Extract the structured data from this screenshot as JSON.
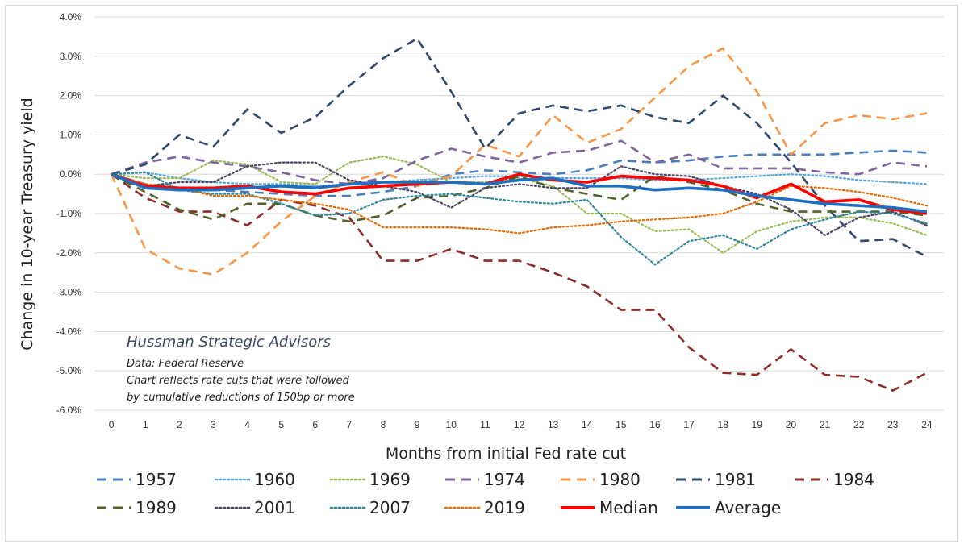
{
  "chart_data": {
    "type": "line",
    "xlabel": "Months from initial Fed rate cut",
    "ylabel": "Change in 10-year Treasury yield",
    "ylim": [
      -6,
      4
    ],
    "yticks": [
      "-6.0%",
      "-5.0%",
      "-4.0%",
      "-3.0%",
      "-2.0%",
      "-1.0%",
      "0.0%",
      "1.0%",
      "2.0%",
      "3.0%",
      "4.0%"
    ],
    "x": [
      0,
      1,
      2,
      3,
      4,
      5,
      6,
      7,
      8,
      9,
      10,
      11,
      12,
      13,
      14,
      15,
      16,
      17,
      18,
      19,
      20,
      21,
      22,
      23,
      24
    ],
    "xticks": [
      "0",
      "1",
      "2",
      "3",
      "4",
      "5",
      "6",
      "7",
      "8",
      "9",
      "10",
      "11",
      "12",
      "13",
      "14",
      "15",
      "16",
      "17",
      "18",
      "19",
      "20",
      "21",
      "22",
      "23",
      "24"
    ],
    "grid": true,
    "legend_position": "bottom",
    "annotation": {
      "title": "Hussman Strategic Advisors",
      "lines": [
        "Data: Federal Reserve",
        "Chart reflects rate cuts that were followed",
        "by cumulative reductions of 150bp or more"
      ]
    },
    "series": [
      {
        "name": "1957",
        "color": "#4a7ebb",
        "style": "dash",
        "values": [
          0,
          -0.25,
          -0.35,
          -0.4,
          -0.45,
          -0.5,
          -0.55,
          -0.55,
          -0.45,
          -0.3,
          0,
          0.1,
          0.05,
          0,
          0.1,
          0.35,
          0.3,
          0.35,
          0.45,
          0.5,
          0.5,
          0.5,
          0.55,
          0.6,
          0.55
        ]
      },
      {
        "name": "1960",
        "color": "#5aa7d6",
        "style": "dot",
        "values": [
          0,
          0.05,
          -0.1,
          -0.2,
          -0.25,
          -0.25,
          -0.3,
          -0.25,
          -0.2,
          -0.15,
          -0.1,
          -0.05,
          -0.05,
          -0.1,
          -0.1,
          -0.1,
          -0.15,
          -0.15,
          -0.1,
          -0.05,
          0,
          -0.05,
          -0.15,
          -0.2,
          -0.25
        ]
      },
      {
        "name": "1969",
        "color": "#9bbb59",
        "style": "dot",
        "values": [
          0,
          -0.1,
          -0.1,
          0.35,
          0.25,
          -0.2,
          -0.25,
          0.3,
          0.45,
          0.25,
          -0.2,
          -0.2,
          -0.1,
          -0.3,
          -1.0,
          -1.0,
          -1.45,
          -1.4,
          -2.0,
          -1.45,
          -1.2,
          -1.1,
          -1.1,
          -1.25,
          -1.55
        ]
      },
      {
        "name": "1974",
        "color": "#8064a2",
        "style": "dash",
        "values": [
          0,
          0.3,
          0.45,
          0.3,
          0.2,
          0.05,
          -0.15,
          -0.25,
          -0.1,
          0.35,
          0.65,
          0.45,
          0.3,
          0.55,
          0.6,
          0.85,
          0.3,
          0.5,
          0.15,
          0.15,
          0.15,
          0.05,
          0,
          0.3,
          0.2
        ]
      },
      {
        "name": "1980",
        "color": "#f79646",
        "style": "dash",
        "values": [
          0,
          -1.9,
          -2.4,
          -2.55,
          -2.0,
          -1.2,
          -0.55,
          -0.2,
          0.05,
          -0.3,
          -0.05,
          0.75,
          0.45,
          1.5,
          0.8,
          1.15,
          1.95,
          2.75,
          3.2,
          2.1,
          0.5,
          1.3,
          1.5,
          1.4,
          1.55
        ]
      },
      {
        "name": "1981",
        "color": "#2e4a6e",
        "style": "dash",
        "values": [
          0,
          0.25,
          1.0,
          0.7,
          1.65,
          1.05,
          1.45,
          2.25,
          2.95,
          3.45,
          2.1,
          0.65,
          1.55,
          1.75,
          1.6,
          1.75,
          1.45,
          1.3,
          2.0,
          1.3,
          0.3,
          -0.8,
          -1.7,
          -1.65,
          -2.1
        ]
      },
      {
        "name": "1984",
        "color": "#8b2e2a",
        "style": "dash",
        "values": [
          0,
          -0.6,
          -0.95,
          -0.95,
          -1.3,
          -0.65,
          -0.8,
          -1.1,
          -2.2,
          -2.2,
          -1.9,
          -2.2,
          -2.2,
          -2.5,
          -2.85,
          -3.45,
          -3.45,
          -4.4,
          -5.05,
          -5.1,
          -4.45,
          -5.1,
          -5.15,
          -5.5,
          -5.05
        ]
      },
      {
        "name": "1989",
        "color": "#4f6228",
        "style": "dash",
        "values": [
          0,
          -0.45,
          -0.9,
          -1.15,
          -0.75,
          -0.75,
          -1.05,
          -1.2,
          -1.05,
          -0.6,
          -0.55,
          -0.35,
          -0.05,
          -0.35,
          -0.5,
          -0.65,
          -0.05,
          -0.2,
          -0.4,
          -0.75,
          -0.95,
          -0.95,
          -0.95,
          -0.95,
          -1.05
        ]
      },
      {
        "name": "2001",
        "color": "#4d4263",
        "style": "dot",
        "values": [
          0,
          -0.3,
          -0.2,
          -0.2,
          0.2,
          0.3,
          0.3,
          -0.15,
          -0.3,
          -0.45,
          -0.85,
          -0.35,
          -0.25,
          -0.35,
          -0.35,
          0.2,
          0,
          -0.05,
          -0.3,
          -0.5,
          -0.9,
          -1.55,
          -1.1,
          -0.95,
          -1.3
        ]
      },
      {
        "name": "2007",
        "color": "#31859c",
        "style": "dot",
        "values": [
          0,
          0.05,
          -0.4,
          -0.5,
          -0.5,
          -0.75,
          -1.05,
          -1.0,
          -0.65,
          -0.55,
          -0.5,
          -0.6,
          -0.7,
          -0.75,
          -0.65,
          -1.6,
          -2.3,
          -1.7,
          -1.55,
          -1.9,
          -1.4,
          -1.15,
          -0.95,
          -1.0,
          -1.25
        ]
      },
      {
        "name": "2019",
        "color": "#e46c0a",
        "style": "dot",
        "values": [
          0,
          -0.25,
          -0.35,
          -0.55,
          -0.55,
          -0.65,
          -0.75,
          -0.9,
          -1.35,
          -1.35,
          -1.35,
          -1.4,
          -1.5,
          -1.35,
          -1.3,
          -1.2,
          -1.15,
          -1.1,
          -1.0,
          -0.7,
          -0.3,
          -0.35,
          -0.45,
          -0.6,
          -0.8
        ]
      },
      {
        "name": "Median",
        "color": "#ff0000",
        "style": "solid",
        "values": [
          0,
          -0.3,
          -0.35,
          -0.35,
          -0.3,
          -0.45,
          -0.5,
          -0.35,
          -0.3,
          -0.25,
          -0.2,
          -0.25,
          0,
          -0.15,
          -0.2,
          -0.05,
          -0.1,
          -0.15,
          -0.3,
          -0.6,
          -0.25,
          -0.7,
          -0.65,
          -0.9,
          -1.0
        ]
      },
      {
        "name": "Average",
        "color": "#1f6fc0",
        "style": "solid",
        "values": [
          0,
          -0.35,
          -0.4,
          -0.4,
          -0.35,
          -0.3,
          -0.35,
          -0.25,
          -0.2,
          -0.2,
          -0.2,
          -0.25,
          -0.15,
          -0.1,
          -0.3,
          -0.3,
          -0.4,
          -0.35,
          -0.4,
          -0.55,
          -0.65,
          -0.75,
          -0.8,
          -0.85,
          -0.95
        ]
      }
    ]
  }
}
